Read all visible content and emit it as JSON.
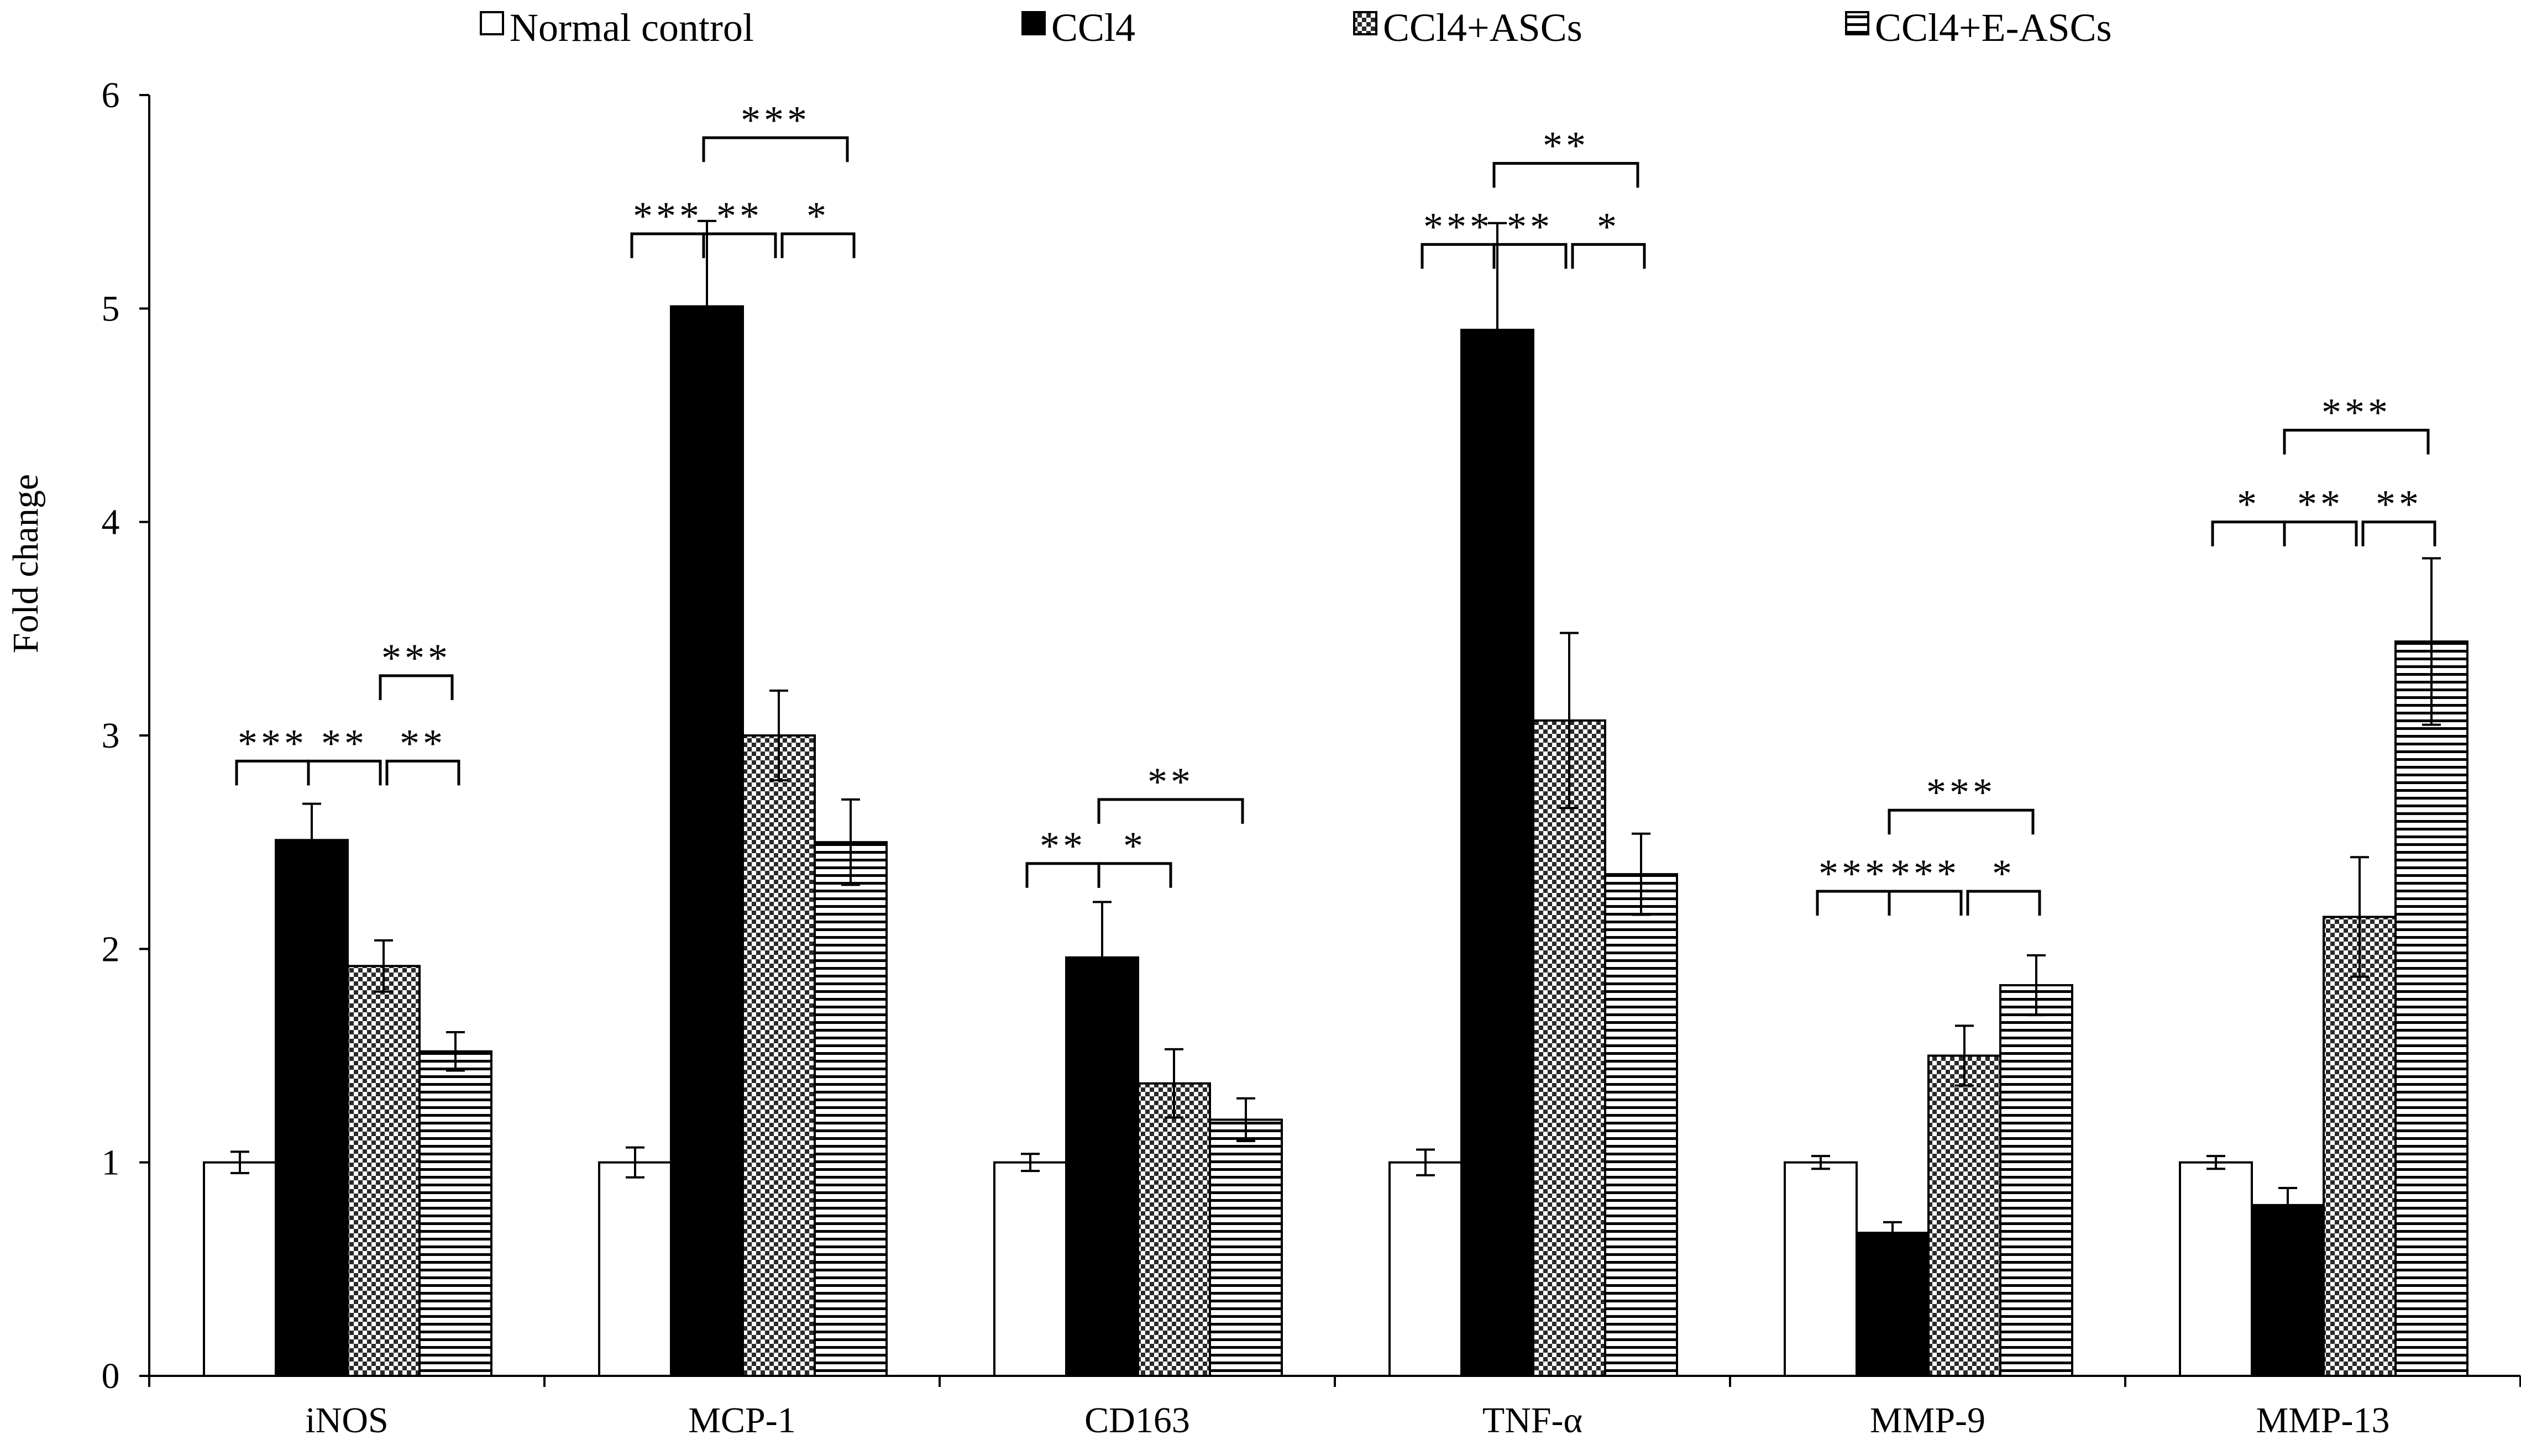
{
  "chart_data": {
    "type": "bar",
    "title": "",
    "xlabel": "",
    "ylabel": "Fold change",
    "ylim": [
      0,
      6
    ],
    "yticks": [
      "0",
      "1",
      "2",
      "3",
      "4",
      "5",
      "6"
    ],
    "grid": false,
    "legend_position": "top",
    "categories": [
      "iNOS",
      "MCP-1",
      "CD163",
      "TNF-α",
      "MMP-9",
      "MMP-13"
    ],
    "series": [
      {
        "name": "Normal control",
        "fill": "white",
        "values": [
          1.0,
          1.0,
          1.0,
          1.0,
          1.0,
          1.0
        ],
        "errors": [
          0.05,
          0.07,
          0.04,
          0.06,
          0.03,
          0.03
        ]
      },
      {
        "name": "CCl4",
        "fill": "black",
        "values": [
          2.51,
          5.01,
          1.96,
          4.9,
          0.67,
          0.8
        ],
        "errors": [
          0.17,
          0.4,
          0.26,
          0.5,
          0.05,
          0.08
        ]
      },
      {
        "name": "CCl4+ASCs",
        "fill": "checker",
        "values": [
          1.92,
          3.0,
          1.37,
          3.07,
          1.5,
          2.15
        ],
        "errors": [
          0.12,
          0.21,
          0.16,
          0.41,
          0.14,
          0.28
        ]
      },
      {
        "name": "CCl4+E-ASCs",
        "fill": "stripes",
        "values": [
          1.52,
          2.5,
          1.2,
          2.35,
          1.83,
          3.44
        ],
        "errors": [
          0.09,
          0.2,
          0.1,
          0.19,
          0.14,
          0.39
        ]
      }
    ],
    "significance": [
      {
        "category": 0,
        "from": 0,
        "to": 1,
        "label": "***",
        "y": 2.88
      },
      {
        "category": 0,
        "from": 2,
        "to": 3,
        "label": "***",
        "y": 3.28
      },
      {
        "category": 0,
        "from": 1,
        "to": 2,
        "label": "**",
        "y": 2.88
      },
      {
        "category": 0,
        "from": 2,
        "to": 3,
        "label": "**",
        "y": 2.88,
        "second": true
      },
      {
        "category": 1,
        "from": 0,
        "to": 1,
        "label": "***",
        "y": 5.35
      },
      {
        "category": 1,
        "from": 1,
        "to": 3,
        "label": "***",
        "y": 5.8
      },
      {
        "category": 1,
        "from": 1,
        "to": 2,
        "label": "**",
        "y": 5.35
      },
      {
        "category": 1,
        "from": 2,
        "to": 3,
        "label": "*",
        "y": 5.35,
        "second": true
      },
      {
        "category": 2,
        "from": 0,
        "to": 1,
        "label": "**",
        "y": 2.4
      },
      {
        "category": 2,
        "from": 1,
        "to": 3,
        "label": "**",
        "y": 2.7
      },
      {
        "category": 2,
        "from": 1,
        "to": 2,
        "label": "*",
        "y": 2.4
      },
      {
        "category": 3,
        "from": 0,
        "to": 1,
        "label": "***",
        "y": 5.3
      },
      {
        "category": 3,
        "from": 1,
        "to": 3,
        "label": "**",
        "y": 5.68
      },
      {
        "category": 3,
        "from": 1,
        "to": 2,
        "label": "**",
        "y": 5.3
      },
      {
        "category": 3,
        "from": 2,
        "to": 3,
        "label": "*",
        "y": 5.3,
        "second": true
      },
      {
        "category": 4,
        "from": 0,
        "to": 1,
        "label": "***",
        "y": 2.27
      },
      {
        "category": 4,
        "from": 1,
        "to": 3,
        "label": "***",
        "y": 2.65
      },
      {
        "category": 4,
        "from": 1,
        "to": 2,
        "label": "***",
        "y": 2.27
      },
      {
        "category": 4,
        "from": 2,
        "to": 3,
        "label": "*",
        "y": 2.27,
        "second": true
      },
      {
        "category": 5,
        "from": 0,
        "to": 1,
        "label": "*",
        "y": 4.0
      },
      {
        "category": 5,
        "from": 1,
        "to": 3,
        "label": "***",
        "y": 4.43
      },
      {
        "category": 5,
        "from": 1,
        "to": 2,
        "label": "**",
        "y": 4.0
      },
      {
        "category": 5,
        "from": 2,
        "to": 3,
        "label": "**",
        "y": 4.0,
        "second": true
      }
    ]
  }
}
